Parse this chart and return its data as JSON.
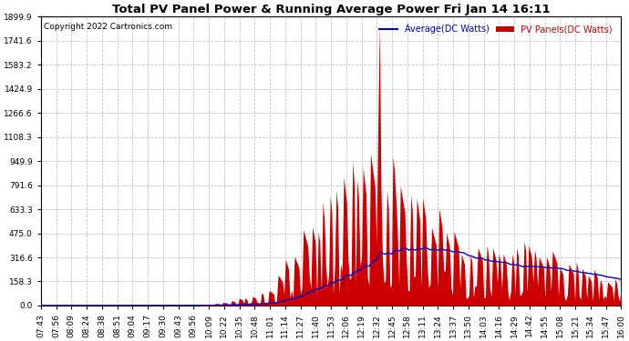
{
  "title": "Total PV Panel Power & Running Average Power Fri Jan 14 16:11",
  "copyright": "Copyright 2022 Cartronics.com",
  "legend_avg": "Average(DC Watts)",
  "legend_pv": "PV Panels(DC Watts)",
  "ymax": 1899.9,
  "ymin": 0.0,
  "yticks": [
    0.0,
    158.3,
    316.6,
    475.0,
    633.3,
    791.6,
    949.9,
    1108.3,
    1266.6,
    1424.9,
    1583.2,
    1741.6,
    1899.9
  ],
  "background_color": "#ffffff",
  "plot_bg_color": "#ffffff",
  "grid_color": "#aaaaaa",
  "area_color": "#cc0000",
  "line_color": "#0000cc",
  "title_color": "#000000",
  "copyright_color": "#000000",
  "xtick_labels": [
    "07:43",
    "07:56",
    "08:09",
    "08:24",
    "08:38",
    "08:51",
    "09:04",
    "09:17",
    "09:30",
    "09:43",
    "09:56",
    "10:09",
    "10:22",
    "10:35",
    "10:48",
    "11:01",
    "11:14",
    "11:27",
    "11:40",
    "11:53",
    "12:06",
    "12:19",
    "12:32",
    "12:45",
    "12:58",
    "13:11",
    "13:24",
    "13:37",
    "13:50",
    "14:03",
    "14:16",
    "14:29",
    "14:42",
    "14:55",
    "15:08",
    "15:21",
    "15:34",
    "15:47",
    "16:00"
  ],
  "num_points": 390
}
